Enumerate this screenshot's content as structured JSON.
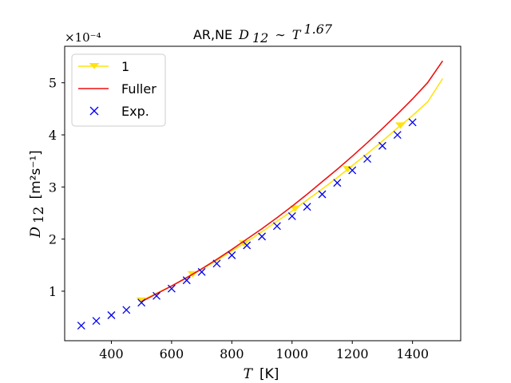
{
  "chart_data": {
    "type": "line",
    "title_prefix": "AR,NE",
    "title_math": "D",
    "title_math_sub": "12",
    "title_tilde": "∼",
    "title_T": "T",
    "title_exp": "1.67",
    "xlabel_var": "T",
    "xlabel_unit": "[K]",
    "ylabel_var": "D",
    "ylabel_sub": "12",
    "ylabel_unit": "[m²s⁻¹]",
    "y_offset_label": "×10⁻⁴",
    "xlim": [
      245,
      1560
    ],
    "ylim": [
      0.05,
      5.7
    ],
    "xticks": [
      400,
      600,
      800,
      1000,
      1200,
      1400
    ],
    "yticks": [
      1,
      2,
      3,
      4,
      5
    ],
    "legend_position": "upper left",
    "series": [
      {
        "name": "1",
        "style": "line-with-triangle-markers",
        "color": "#ffe30f",
        "x": [
          500,
          550,
          600,
          650,
          700,
          750,
          800,
          850,
          900,
          950,
          1000,
          1050,
          1100,
          1150,
          1200,
          1250,
          1300,
          1350,
          1400,
          1450,
          1500
        ],
        "y": [
          0.82,
          0.96,
          1.1,
          1.26,
          1.42,
          1.59,
          1.77,
          1.95,
          2.14,
          2.34,
          2.54,
          2.75,
          2.96,
          3.18,
          3.41,
          3.64,
          3.88,
          4.13,
          4.37,
          4.63,
          5.08
        ],
        "marker_x": [
          500,
          670,
          840,
          1010,
          1185,
          1360
        ]
      },
      {
        "name": "Fuller",
        "style": "line",
        "color": "#ee1111",
        "x": [
          500,
          550,
          600,
          650,
          700,
          750,
          800,
          850,
          900,
          950,
          1000,
          1050,
          1100,
          1150,
          1200,
          1250,
          1300,
          1350,
          1400,
          1450,
          1500
        ],
        "y": [
          0.8,
          0.95,
          1.1,
          1.26,
          1.43,
          1.61,
          1.8,
          2.0,
          2.2,
          2.41,
          2.63,
          2.86,
          3.1,
          3.34,
          3.59,
          3.85,
          4.12,
          4.4,
          4.69,
          5.0,
          5.42
        ]
      },
      {
        "name": "Exp.",
        "style": "markers-x",
        "color": "#0000ee",
        "x": [
          300,
          350,
          400,
          450,
          500,
          550,
          600,
          650,
          700,
          750,
          800,
          850,
          900,
          950,
          1000,
          1050,
          1100,
          1150,
          1200,
          1250,
          1300,
          1350,
          1400
        ],
        "y": [
          0.34,
          0.43,
          0.54,
          0.64,
          0.78,
          0.91,
          1.05,
          1.21,
          1.37,
          1.53,
          1.69,
          1.88,
          2.05,
          2.25,
          2.44,
          2.62,
          2.86,
          3.08,
          3.32,
          3.54,
          3.79,
          4.0,
          4.24
        ]
      }
    ]
  }
}
